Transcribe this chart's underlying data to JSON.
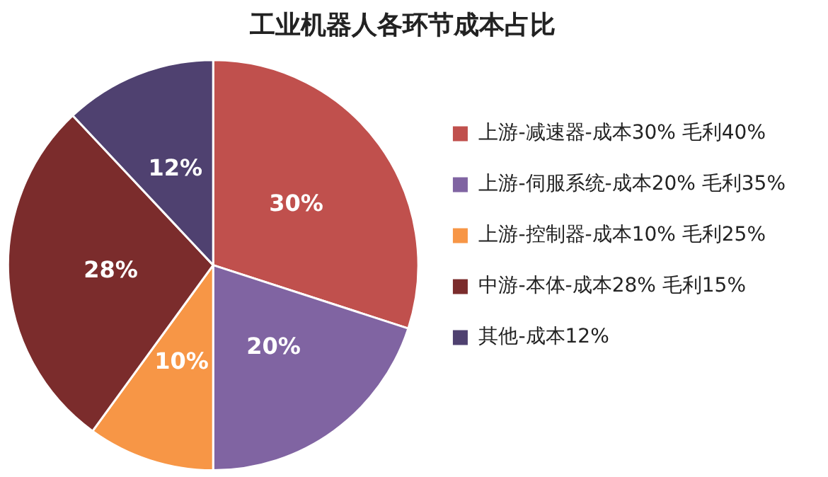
{
  "chart_data": {
    "type": "pie",
    "title": "工业机器人各环节成本占比",
    "categories": [
      "上游-减速器-成本30% 毛利40%",
      "上游-伺服系统-成本20% 毛利35%",
      "上游-控制器-成本10% 毛利25%",
      "中游-本体-成本28% 毛利15%",
      "其他-成本12%"
    ],
    "values": [
      30,
      20,
      10,
      28,
      12
    ],
    "colors": [
      "#c0504d",
      "#8064a2",
      "#f79646",
      "#7b2c2c",
      "#4f4170"
    ],
    "value_labels": [
      "30%",
      "20%",
      "10%",
      "28%",
      "12%"
    ],
    "legend": "right"
  }
}
